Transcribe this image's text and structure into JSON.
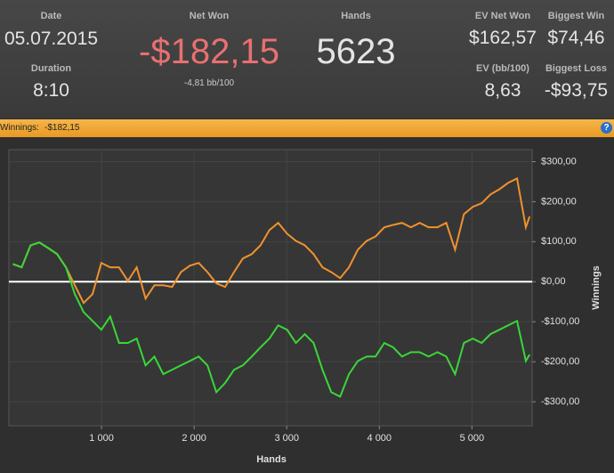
{
  "header": {
    "date_label": "Date",
    "date": "05.07.2015",
    "duration_label": "Duration",
    "duration": "8:10",
    "net_won_label": "Net Won",
    "net_won": "-$182,15",
    "bb_per_100": "-4,81 bb/100",
    "hands_label": "Hands",
    "hands": "5623",
    "ev_net_won_label": "EV Net Won",
    "ev_net_won": "$162,57",
    "ev_bb_label": "EV (bb/100)",
    "ev_bb": "8,63",
    "biggest_win_label": "Biggest Win",
    "biggest_win": "$74,46",
    "biggest_loss_label": "Biggest Loss",
    "biggest_loss": "-$93,75"
  },
  "bar": {
    "label": "Winnings:",
    "value": "-$182,15",
    "help": "?"
  },
  "chart_data": {
    "type": "line",
    "x_label": "Hands",
    "y_label": "Winnings",
    "xlim": [
      0,
      5650
    ],
    "ylim": [
      -360,
      330
    ],
    "xticks": [
      {
        "value": 1000,
        "label": "1 000"
      },
      {
        "value": 2000,
        "label": "2 000"
      },
      {
        "value": 3000,
        "label": "3 000"
      },
      {
        "value": 4000,
        "label": "4 000"
      },
      {
        "value": 5000,
        "label": "5 000"
      }
    ],
    "yticks": [
      {
        "value": 300,
        "label": "$300,00"
      },
      {
        "value": 200,
        "label": "$200,00"
      },
      {
        "value": 100,
        "label": "$100,00"
      },
      {
        "value": 0,
        "label": "$0,00"
      },
      {
        "value": -100,
        "label": "-$100,00"
      },
      {
        "value": -200,
        "label": "-$200,00"
      },
      {
        "value": -300,
        "label": "-$300,00"
      }
    ],
    "grid": true,
    "x": [
      43,
      138,
      234,
      330,
      425,
      521,
      616,
      712,
      807,
      903,
      998,
      1094,
      1189,
      1285,
      1380,
      1476,
      1571,
      1667,
      1762,
      1858,
      1953,
      2049,
      2144,
      2240,
      2335,
      2431,
      2526,
      2622,
      2717,
      2813,
      2908,
      3004,
      3099,
      3195,
      3290,
      3386,
      3481,
      3577,
      3672,
      3768,
      3863,
      3959,
      4054,
      4150,
      4245,
      4341,
      4436,
      4532,
      4627,
      4723,
      4818,
      4914,
      5009,
      5105,
      5200,
      5296,
      5391,
      5487,
      5582,
      5623
    ],
    "series": [
      {
        "color": "#f0922e",
        "values": [
          44,
          36,
          91,
          98,
          84,
          69,
          36,
          -9,
          -53,
          -31,
          47,
          36,
          36,
          2,
          36,
          -42,
          -9,
          -9,
          -13,
          24,
          40,
          47,
          24,
          -4,
          -13,
          24,
          58,
          69,
          91,
          129,
          147,
          120,
          102,
          91,
          69,
          36,
          24,
          9,
          36,
          80,
          102,
          113,
          136,
          142,
          147,
          136,
          147,
          136,
          136,
          147,
          80,
          169,
          187,
          196,
          218,
          231,
          247,
          258,
          136,
          163
        ]
      },
      {
        "color": "#39d739",
        "values": [
          44,
          36,
          91,
          98,
          84,
          69,
          36,
          -31,
          -76,
          -98,
          -120,
          -87,
          -153,
          -153,
          -142,
          -209,
          -187,
          -231,
          -220,
          -209,
          -198,
          -187,
          -209,
          -276,
          -253,
          -220,
          -209,
          -187,
          -164,
          -142,
          -109,
          -120,
          -153,
          -131,
          -153,
          -220,
          -276,
          -287,
          -231,
          -198,
          -187,
          -187,
          -153,
          -164,
          -187,
          -176,
          -176,
          -187,
          -176,
          -187,
          -231,
          -153,
          -142,
          -153,
          -131,
          -120,
          -109,
          -98,
          -198,
          -182
        ]
      }
    ]
  }
}
